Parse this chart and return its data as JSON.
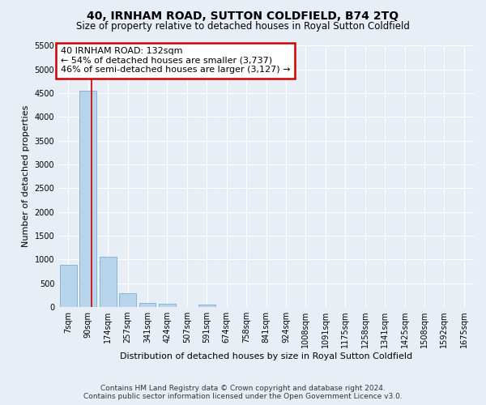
{
  "title": "40, IRNHAM ROAD, SUTTON COLDFIELD, B74 2TQ",
  "subtitle": "Size of property relative to detached houses in Royal Sutton Coldfield",
  "xlabel": "Distribution of detached houses by size in Royal Sutton Coldfield",
  "ylabel": "Number of detached properties",
  "categories": [
    "7sqm",
    "90sqm",
    "174sqm",
    "257sqm",
    "341sqm",
    "424sqm",
    "507sqm",
    "591sqm",
    "674sqm",
    "758sqm",
    "841sqm",
    "924sqm",
    "1008sqm",
    "1091sqm",
    "1175sqm",
    "1258sqm",
    "1341sqm",
    "1425sqm",
    "1508sqm",
    "1592sqm",
    "1675sqm"
  ],
  "values": [
    880,
    4560,
    1060,
    290,
    80,
    75,
    0,
    55,
    0,
    0,
    0,
    0,
    0,
    0,
    0,
    0,
    0,
    0,
    0,
    0,
    0
  ],
  "bar_color": "#b8d4ea",
  "bar_edge_color": "#7aafd4",
  "annotation_text": "40 IRNHAM ROAD: 132sqm\n← 54% of detached houses are smaller (3,737)\n46% of semi-detached houses are larger (3,127) →",
  "annotation_box_facecolor": "#ffffff",
  "annotation_box_edgecolor": "#cc0000",
  "ylim": [
    0,
    5500
  ],
  "yticks": [
    0,
    500,
    1000,
    1500,
    2000,
    2500,
    3000,
    3500,
    4000,
    4500,
    5000,
    5500
  ],
  "vline_color": "#cc0000",
  "vline_x": 1.18,
  "background_color": "#e8eef5",
  "grid_color": "#ffffff",
  "footer_line1": "Contains HM Land Registry data © Crown copyright and database right 2024.",
  "footer_line2": "Contains public sector information licensed under the Open Government Licence v3.0.",
  "title_fontsize": 10,
  "subtitle_fontsize": 8.5,
  "xlabel_fontsize": 8,
  "ylabel_fontsize": 8,
  "tick_fontsize": 7,
  "annotation_fontsize": 8,
  "footer_fontsize": 6.5
}
